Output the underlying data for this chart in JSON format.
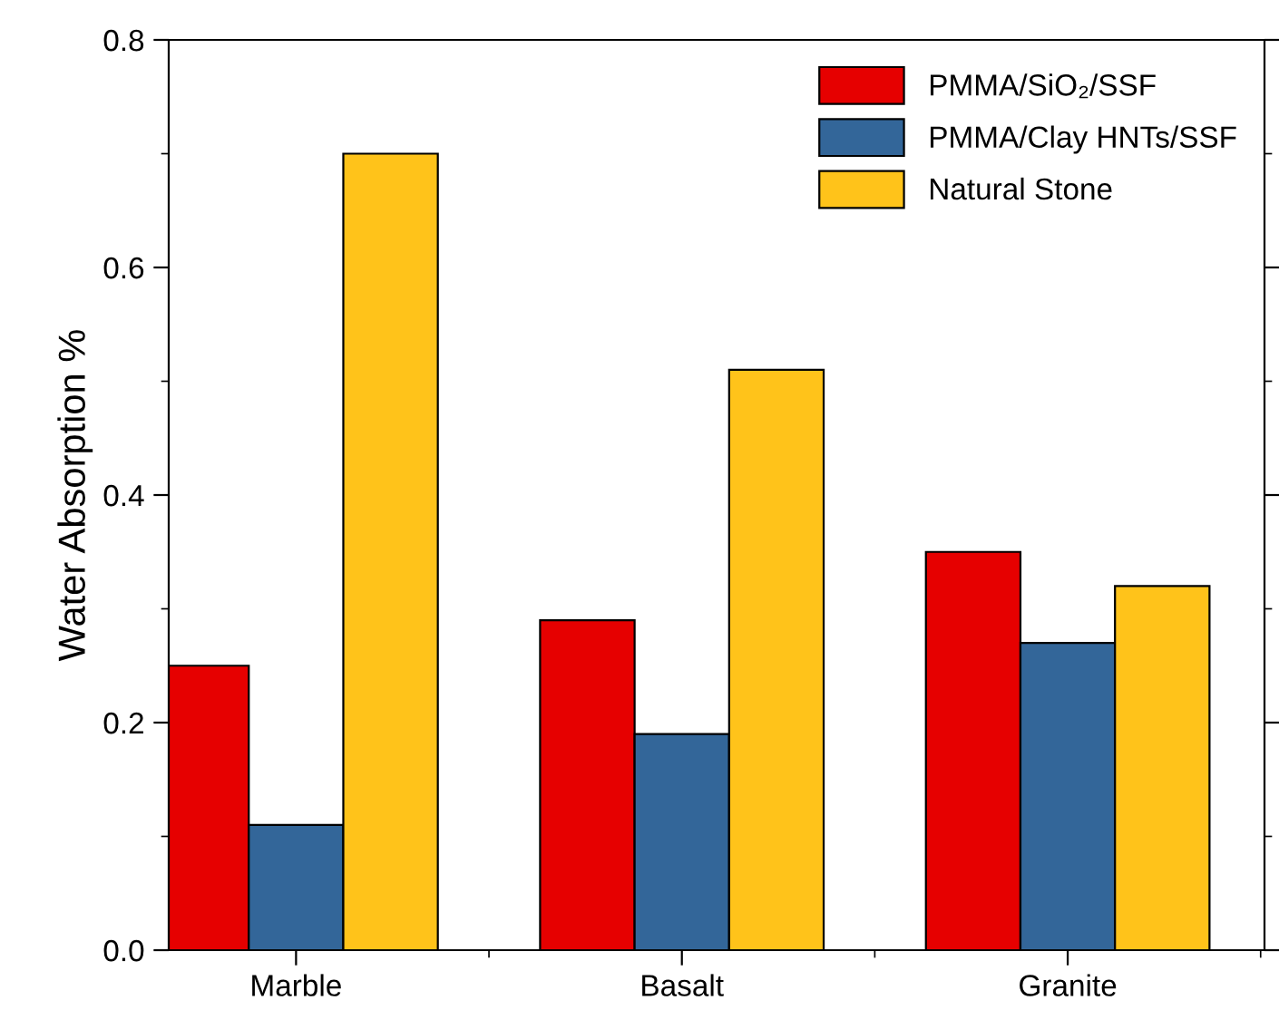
{
  "chart_data": {
    "type": "bar",
    "ylabel": "Water Absorption %",
    "categories": [
      "Marble",
      "Basalt",
      "Granite"
    ],
    "series": [
      {
        "name": "PMMA/SiO₂/SSF",
        "color": "#e60000",
        "values": [
          0.25,
          0.29,
          0.35
        ]
      },
      {
        "name": "PMMA/Clay HNTs/SSF",
        "color": "#336699",
        "values": [
          0.11,
          0.19,
          0.27
        ]
      },
      {
        "name": "Natural Stone",
        "color": "#ffc31a",
        "values": [
          0.7,
          0.51,
          0.32
        ]
      }
    ],
    "ylim": [
      0,
      0.8
    ],
    "yticks": [
      {
        "value": 0,
        "label": "0.0"
      },
      0.2,
      0.4,
      0.6,
      0.8
    ],
    "grid": false,
    "legend": "top right"
  }
}
